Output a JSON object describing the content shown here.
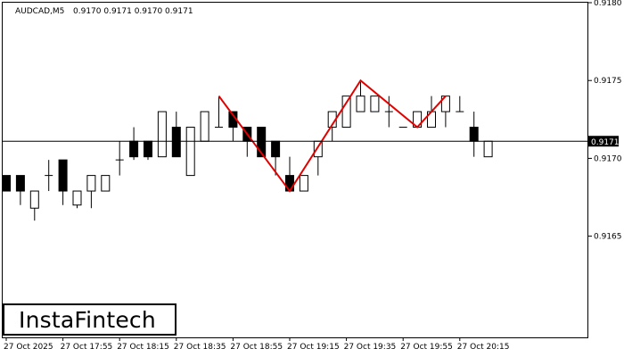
{
  "header": {
    "symbol": "AUDCAD,M5",
    "ohlc": "0.9170 0.9171 0.9170 0.9171"
  },
  "logo_text": "InstaFintech",
  "current_price_label": "0.9171",
  "colors": {
    "pattern": "#e00000",
    "candle": "#000000",
    "background": "#ffffff",
    "price_label_bg": "#000000"
  },
  "chart_data": {
    "type": "candlestick",
    "symbol": "AUDCAD",
    "timeframe": "M5",
    "ylim": [
      0.91585,
      0.918
    ],
    "y_ticks": [
      "0.9180",
      "0.9175",
      "0.9170",
      "0.9165"
    ],
    "x_ticks": [
      "27 Oct 2025",
      "27 Oct 17:55",
      "27 Oct 18:15",
      "27 Oct 18:35",
      "27 Oct 18:55",
      "27 Oct 19:15",
      "27 Oct 19:35",
      "27 Oct 19:55",
      "27 Oct 20:15"
    ],
    "x_tick_candle_index": [
      0,
      4,
      8,
      12,
      16,
      20,
      24,
      28,
      32
    ],
    "current_price": 0.91711,
    "candles": [
      {
        "o": 0.91689,
        "h": 0.91689,
        "l": 0.91679,
        "c": 0.91679
      },
      {
        "o": 0.91689,
        "h": 0.91689,
        "l": 0.9167,
        "c": 0.91679
      },
      {
        "o": 0.91668,
        "h": 0.91679,
        "l": 0.9166,
        "c": 0.91679
      },
      {
        "o": 0.91689,
        "h": 0.91699,
        "l": 0.91679,
        "c": 0.91689
      },
      {
        "o": 0.91699,
        "h": 0.91699,
        "l": 0.9167,
        "c": 0.91679
      },
      {
        "o": 0.9167,
        "h": 0.91679,
        "l": 0.91668,
        "c": 0.91679
      },
      {
        "o": 0.91679,
        "h": 0.91689,
        "l": 0.91668,
        "c": 0.91689
      },
      {
        "o": 0.91679,
        "h": 0.91689,
        "l": 0.91679,
        "c": 0.91689
      },
      {
        "o": 0.91699,
        "h": 0.91711,
        "l": 0.91689,
        "c": 0.91699
      },
      {
        "o": 0.91711,
        "h": 0.9172,
        "l": 0.91699,
        "c": 0.91701
      },
      {
        "o": 0.91711,
        "h": 0.91711,
        "l": 0.91699,
        "c": 0.91701
      },
      {
        "o": 0.91701,
        "h": 0.9173,
        "l": 0.91701,
        "c": 0.9173
      },
      {
        "o": 0.9172,
        "h": 0.9173,
        "l": 0.91701,
        "c": 0.91701
      },
      {
        "o": 0.91689,
        "h": 0.9172,
        "l": 0.91689,
        "c": 0.9172
      },
      {
        "o": 0.91711,
        "h": 0.9173,
        "l": 0.91711,
        "c": 0.9173
      },
      {
        "o": 0.9172,
        "h": 0.9174,
        "l": 0.9172,
        "c": 0.9172
      },
      {
        "o": 0.9173,
        "h": 0.9173,
        "l": 0.91711,
        "c": 0.9172
      },
      {
        "o": 0.9172,
        "h": 0.9172,
        "l": 0.91701,
        "c": 0.91711
      },
      {
        "o": 0.9172,
        "h": 0.9172,
        "l": 0.91701,
        "c": 0.91701
      },
      {
        "o": 0.91711,
        "h": 0.91711,
        "l": 0.91689,
        "c": 0.91701
      },
      {
        "o": 0.91689,
        "h": 0.91701,
        "l": 0.91679,
        "c": 0.91679
      },
      {
        "o": 0.91679,
        "h": 0.91689,
        "l": 0.91679,
        "c": 0.91689
      },
      {
        "o": 0.91701,
        "h": 0.91711,
        "l": 0.91689,
        "c": 0.91711
      },
      {
        "o": 0.9172,
        "h": 0.9173,
        "l": 0.91711,
        "c": 0.9173
      },
      {
        "o": 0.9172,
        "h": 0.9174,
        "l": 0.9172,
        "c": 0.9174
      },
      {
        "o": 0.9173,
        "h": 0.91749,
        "l": 0.9173,
        "c": 0.9174
      },
      {
        "o": 0.9173,
        "h": 0.9174,
        "l": 0.9173,
        "c": 0.9174
      },
      {
        "o": 0.9173,
        "h": 0.9174,
        "l": 0.9172,
        "c": 0.9173
      },
      {
        "o": 0.9172,
        "h": 0.9172,
        "l": 0.9172,
        "c": 0.9172
      },
      {
        "o": 0.9172,
        "h": 0.9173,
        "l": 0.9172,
        "c": 0.9173
      },
      {
        "o": 0.9172,
        "h": 0.9174,
        "l": 0.9172,
        "c": 0.9173
      },
      {
        "o": 0.9173,
        "h": 0.9174,
        "l": 0.9172,
        "c": 0.9174
      },
      {
        "o": 0.9173,
        "h": 0.9174,
        "l": 0.9173,
        "c": 0.9173
      },
      {
        "o": 0.9172,
        "h": 0.9173,
        "l": 0.91701,
        "c": 0.91711
      },
      {
        "o": 0.91701,
        "h": 0.91711,
        "l": 0.91701,
        "c": 0.91711
      }
    ],
    "pattern": {
      "color": "#e00000",
      "points": [
        {
          "candle": 15,
          "price": 0.9174
        },
        {
          "candle": 20,
          "price": 0.91679
        },
        {
          "candle": 25,
          "price": 0.9175
        },
        {
          "candle": 29,
          "price": 0.9172
        },
        {
          "candle": 31,
          "price": 0.9174
        }
      ]
    }
  }
}
